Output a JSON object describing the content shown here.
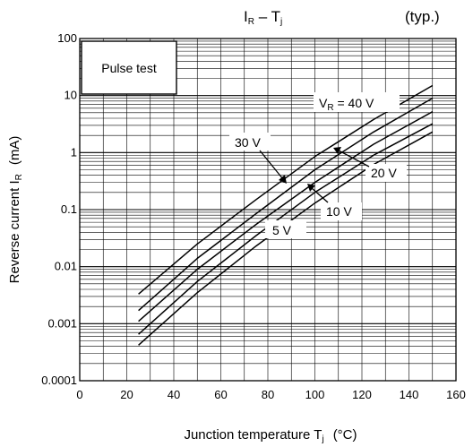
{
  "chart_data": {
    "type": "line",
    "title": {
      "main": "I",
      "main_sub": "R",
      "main_dash": " – T",
      "main_sub2": "j",
      "note": "(typ.)"
    },
    "xlabel": {
      "text": "Junction temperature   T",
      "sub": "j",
      "unit": "(°C)"
    },
    "ylabel": {
      "text": "Reverse current   I",
      "sub": "R",
      "unit": "(mA)"
    },
    "x_scale": "linear",
    "y_scale": "log",
    "xlim": [
      0,
      160
    ],
    "ylim": [
      0.0001,
      100
    ],
    "x_ticks": [
      "0",
      "20",
      "40",
      "60",
      "80",
      "100",
      "120",
      "140",
      "160"
    ],
    "y_ticks": [
      "0.0001",
      "0.001",
      "0.01",
      "0.1",
      "1",
      "10",
      "100"
    ],
    "grid": true,
    "legend_box": "Pulse test",
    "series": [
      {
        "name": "V_R = 40 V",
        "x": [
          25,
          50,
          75,
          100,
          125,
          150
        ],
        "y": [
          0.0033,
          0.025,
          0.15,
          0.85,
          3.8,
          15
        ]
      },
      {
        "name": "30 V",
        "x": [
          25,
          50,
          75,
          100,
          125,
          150
        ],
        "y": [
          0.0017,
          0.014,
          0.085,
          0.5,
          2.3,
          9
        ]
      },
      {
        "name": "20 V",
        "x": [
          25,
          50,
          75,
          100,
          125,
          150
        ],
        "y": [
          0.0011,
          0.009,
          0.055,
          0.3,
          1.4,
          5.2
        ]
      },
      {
        "name": "10 V",
        "x": [
          25,
          50,
          75,
          100,
          125,
          150
        ],
        "y": [
          0.00065,
          0.0055,
          0.035,
          0.2,
          0.9,
          3.2
        ]
      },
      {
        "name": "5 V",
        "x": [
          25,
          50,
          75,
          100,
          125,
          150
        ],
        "y": [
          0.00042,
          0.0035,
          0.023,
          0.13,
          0.62,
          2.3
        ]
      }
    ],
    "annotations": {
      "vr40": {
        "pre": "V",
        "sub": "R",
        "post": " = 40 V"
      },
      "v30": "30 V",
      "v20": "20 V",
      "v10": "10 V",
      "v5": "5 V"
    }
  }
}
